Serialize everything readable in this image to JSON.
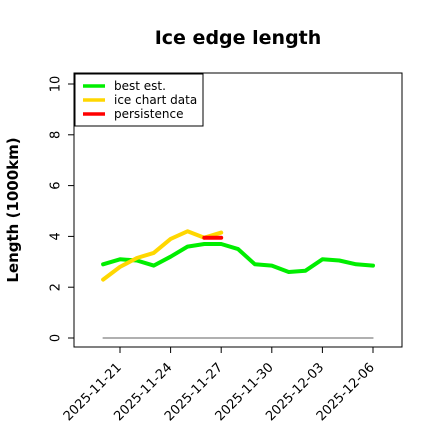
{
  "chart_data": {
    "type": "line",
    "title": "Ice edge length",
    "ylabel": "Length (1000km)",
    "xlabel": "",
    "ylim": [
      0,
      10
    ],
    "y_ticks": [
      0,
      2,
      4,
      6,
      8,
      10
    ],
    "x_ticks": [
      "2025-11-21",
      "2025-11-24",
      "2025-11-27",
      "2025-11-30",
      "2025-12-03",
      "2025-12-06"
    ],
    "x_range": [
      "2025-11-18",
      "2025-12-07"
    ],
    "grid": false,
    "legend_position": "top-left",
    "series": [
      {
        "name": "best est.",
        "color": "#00ee00",
        "x": [
          "2025-11-20",
          "2025-11-21",
          "2025-11-22",
          "2025-11-23",
          "2025-11-24",
          "2025-11-25",
          "2025-11-26",
          "2025-11-27",
          "2025-11-28",
          "2025-11-29",
          "2025-11-30",
          "2025-12-01",
          "2025-12-02",
          "2025-12-03",
          "2025-12-04",
          "2025-12-05",
          "2025-12-06"
        ],
        "values": [
          2.9,
          3.1,
          3.05,
          2.85,
          3.2,
          3.6,
          3.7,
          3.7,
          3.5,
          2.9,
          2.85,
          2.6,
          2.65,
          3.1,
          3.05,
          2.9,
          2.85
        ]
      },
      {
        "name": "ice chart data",
        "color": "#ffd700",
        "x": [
          "2025-11-20",
          "2025-11-21",
          "2025-11-22",
          "2025-11-23",
          "2025-11-24",
          "2025-11-25",
          "2025-11-26",
          "2025-11-27"
        ],
        "values": [
          2.3,
          2.8,
          3.15,
          3.35,
          3.9,
          4.2,
          3.95,
          4.15
        ]
      },
      {
        "name": "persistence",
        "color": "#ff0000",
        "x": [
          "2025-11-26",
          "2025-11-27"
        ],
        "values": [
          3.95,
          3.95
        ]
      },
      {
        "name": "",
        "color": "#808080",
        "x": [
          "2025-11-20",
          "2025-12-06"
        ],
        "values": [
          0,
          0
        ]
      }
    ]
  }
}
